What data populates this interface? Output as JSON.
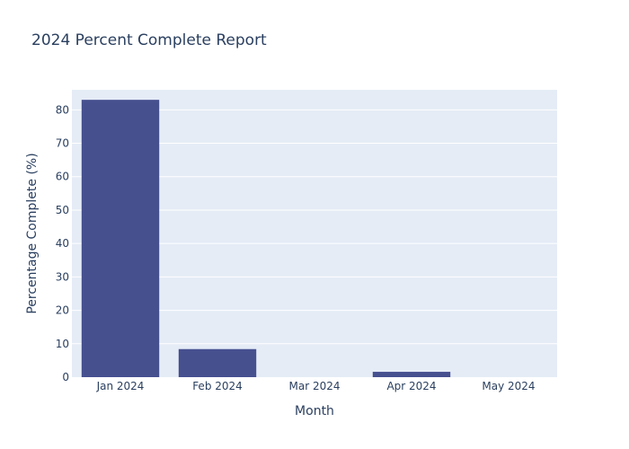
{
  "chart_data": {
    "type": "bar",
    "title": "2024 Percent Complete Report",
    "xlabel": "Month",
    "ylabel": "Percentage Complete (%)",
    "categories": [
      "Jan 2024",
      "Feb 2024",
      "Mar 2024",
      "Apr 2024",
      "May 2024"
    ],
    "values": [
      83,
      8.4,
      0,
      1.6,
      0
    ],
    "ylim": [
      0,
      86
    ],
    "yticks": [
      0,
      10,
      20,
      30,
      40,
      50,
      60,
      70,
      80
    ],
    "grid": true,
    "legend": "none",
    "colors": {
      "bar": "#46508f",
      "plot_background": "#e5ecf6",
      "gridline": "#ffffff",
      "text": "#2a3f5f"
    }
  }
}
